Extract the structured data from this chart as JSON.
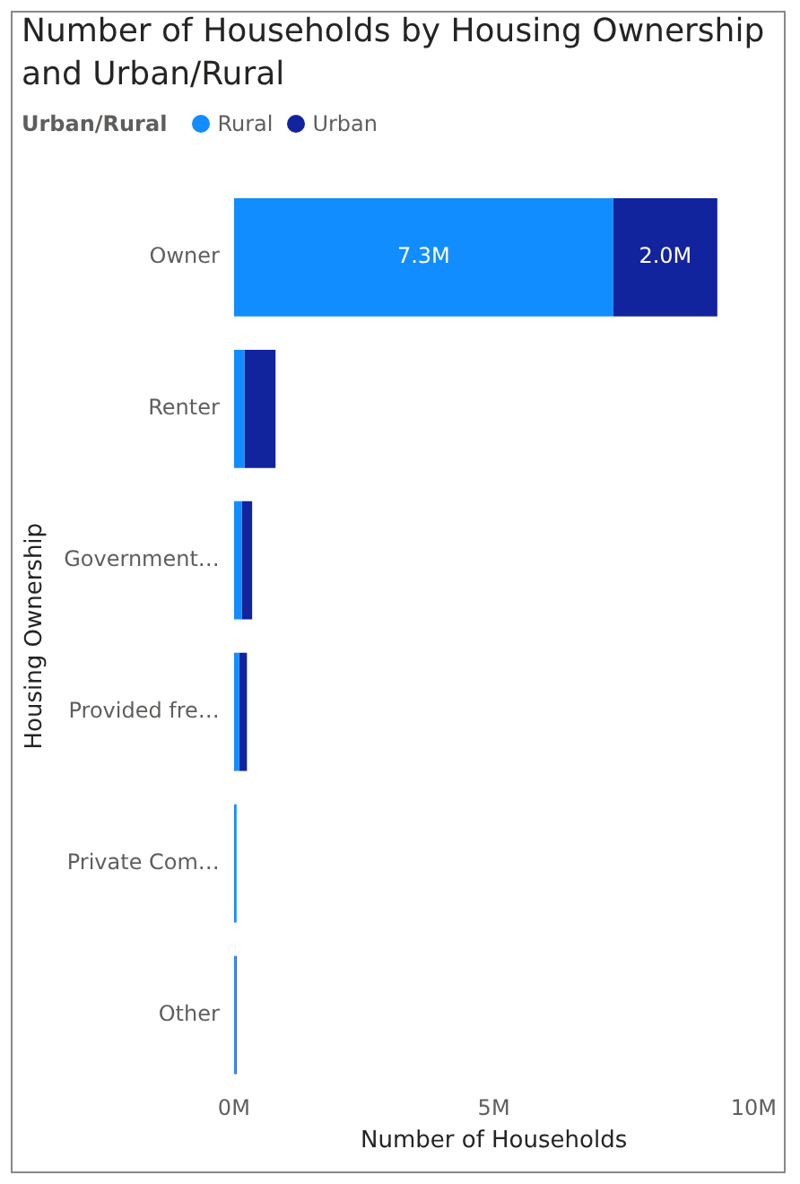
{
  "chart_data": {
    "type": "bar",
    "orientation": "horizontal",
    "stacked": true,
    "title": "Number of Households by Housing Ownership and Urban/Rural",
    "legend_title": "Urban/Rural",
    "legend": "top left",
    "xlabel": "Number of Households",
    "ylabel": "Housing Ownership",
    "categories": [
      "Owner",
      "Renter",
      "Government…",
      "Provided fre…",
      "Private Com…",
      "Other"
    ],
    "series": [
      {
        "name": "Rural",
        "color": "#118dff",
        "values": [
          7.3,
          0.2,
          0.15,
          0.1,
          0.05,
          0.03
        ],
        "value_labels": [
          "7.3M",
          null,
          null,
          null,
          null,
          null
        ]
      },
      {
        "name": "Urban",
        "color": "#12239e",
        "values": [
          2.0,
          0.6,
          0.2,
          0.15,
          null,
          0.02
        ],
        "value_labels": [
          "2.0M",
          null,
          null,
          null,
          null,
          null
        ]
      }
    ],
    "xlim": [
      0,
      10
    ],
    "xticks": [
      {
        "value": 0,
        "label": "0M"
      },
      {
        "value": 5,
        "label": "5M"
      },
      {
        "value": 10,
        "label": "10M"
      }
    ],
    "grid": false
  }
}
